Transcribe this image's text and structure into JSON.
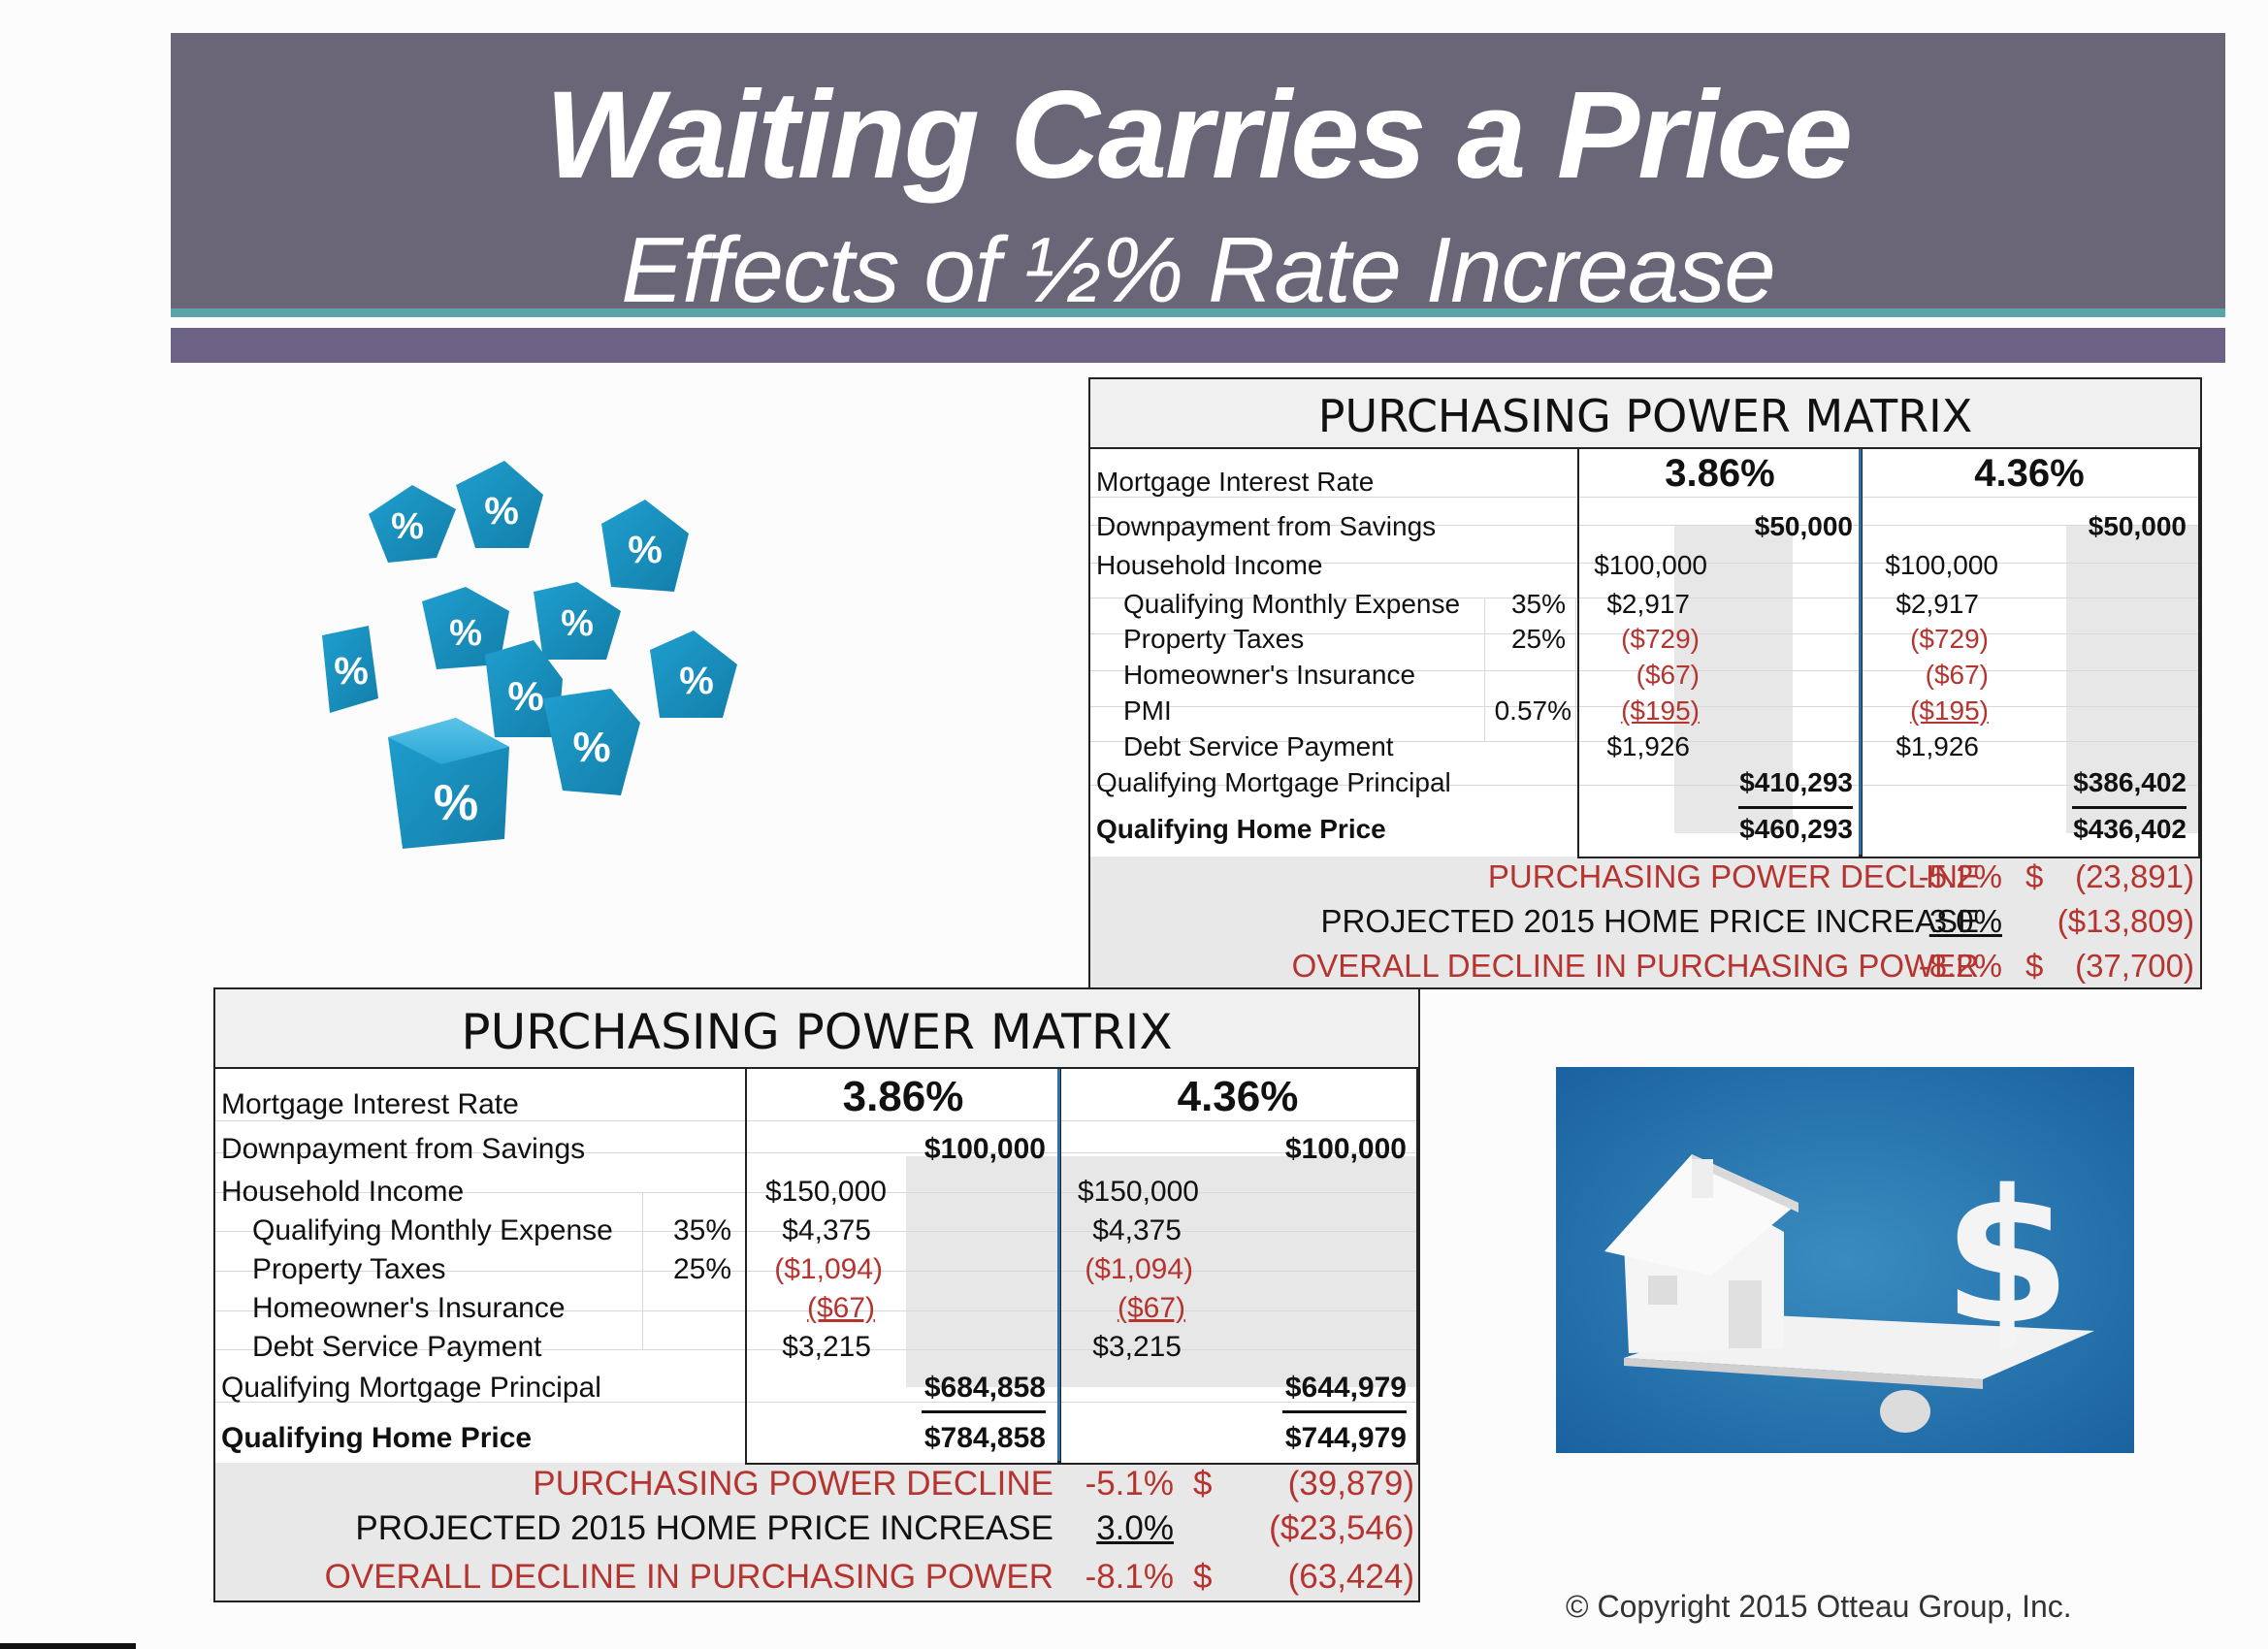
{
  "header": {
    "title": "Waiting Carries a Price",
    "subtitle": "Effects of ½% Rate Increase"
  },
  "matrix_top": {
    "title": "PURCHASING POWER MATRIX",
    "rate_a": "3.86%",
    "rate_b": "4.36%",
    "rows": {
      "mortgage_rate": "Mortgage Interest Rate",
      "downpayment": "Downpayment from Savings",
      "income": "Household Income",
      "qme": "Qualifying Monthly Expense",
      "taxes": "Property Taxes",
      "insurance": "Homeowner's Insurance",
      "pmi": "PMI",
      "debt": "Debt Service Payment",
      "principal": "Qualifying Mortgage Principal",
      "price": "Qualifying Home Price"
    },
    "pct": {
      "qme": "35%",
      "taxes": "25%",
      "pmi": "0.57%"
    },
    "a": {
      "downpayment": "$50,000",
      "income": "$100,000",
      "qme": "$2,917",
      "taxes": "($729)",
      "insurance": "($67)",
      "pmi": "($195)",
      "debt": "$1,926",
      "principal": "$410,293",
      "price": "$460,293"
    },
    "b": {
      "downpayment": "$50,000",
      "income": "$100,000",
      "qme": "$2,917",
      "taxes": "($729)",
      "insurance": "($67)",
      "pmi": "($195)",
      "debt": "$1,926",
      "principal": "$386,402",
      "price": "$436,402"
    },
    "summary": {
      "decline_label": "PURCHASING POWER DECLINE",
      "decline_pct": "-5.2%",
      "decline_cur": "$",
      "decline_amt": "(23,891)",
      "increase_label": "PROJECTED 2015 HOME PRICE INCREASE",
      "increase_pct": "3.0%",
      "increase_amt": "($13,809)",
      "overall_label": "OVERALL DECLINE IN PURCHASING POWER",
      "overall_pct": "-8.2%",
      "overall_cur": "$",
      "overall_amt": "(37,700)"
    }
  },
  "matrix_bottom": {
    "title": "PURCHASING POWER MATRIX",
    "rate_a": "3.86%",
    "rate_b": "4.36%",
    "rows": {
      "mortgage_rate": "Mortgage Interest Rate",
      "downpayment": "Downpayment from Savings",
      "income": "Household Income",
      "qme": "Qualifying Monthly Expense",
      "taxes": "Property Taxes",
      "insurance": "Homeowner's Insurance",
      "debt": "Debt Service Payment",
      "principal": "Qualifying Mortgage Principal",
      "price": "Qualifying Home Price"
    },
    "pct": {
      "qme": "35%",
      "taxes": "25%"
    },
    "a": {
      "downpayment": "$100,000",
      "income": "$150,000",
      "qme": "$4,375",
      "taxes": "($1,094)",
      "insurance": "($67)",
      "debt": "$3,215",
      "principal": "$684,858",
      "price": "$784,858"
    },
    "b": {
      "downpayment": "$100,000",
      "income": "$150,000",
      "qme": "$4,375",
      "taxes": "($1,094)",
      "insurance": "($67)",
      "debt": "$3,215",
      "principal": "$644,979",
      "price": "$744,979"
    },
    "summary": {
      "decline_label": "PURCHASING POWER DECLINE",
      "decline_pct": "-5.1%",
      "decline_cur": "$",
      "decline_amt": "(39,879)",
      "increase_label": "PROJECTED 2015 HOME PRICE INCREASE",
      "increase_pct": "3.0%",
      "increase_amt": "($23,546)",
      "overall_label": "OVERALL DECLINE IN PURCHASING POWER",
      "overall_pct": "-8.1%",
      "overall_cur": "$",
      "overall_amt": "(63,424)"
    }
  },
  "dice_glyph": "%",
  "house_photo_icon": "house-and-dollar-seesaw-icon",
  "copyright": "© Copyright 2015 Otteau Group, Inc.",
  "colors": {
    "banner": "#6b6677",
    "accent_teal": "#5aa3a6",
    "accent_purple": "#6b6285",
    "negative_red": "#b5342f",
    "dice_blue": "#1f9fcf",
    "photo_blue": "#2177b0"
  }
}
